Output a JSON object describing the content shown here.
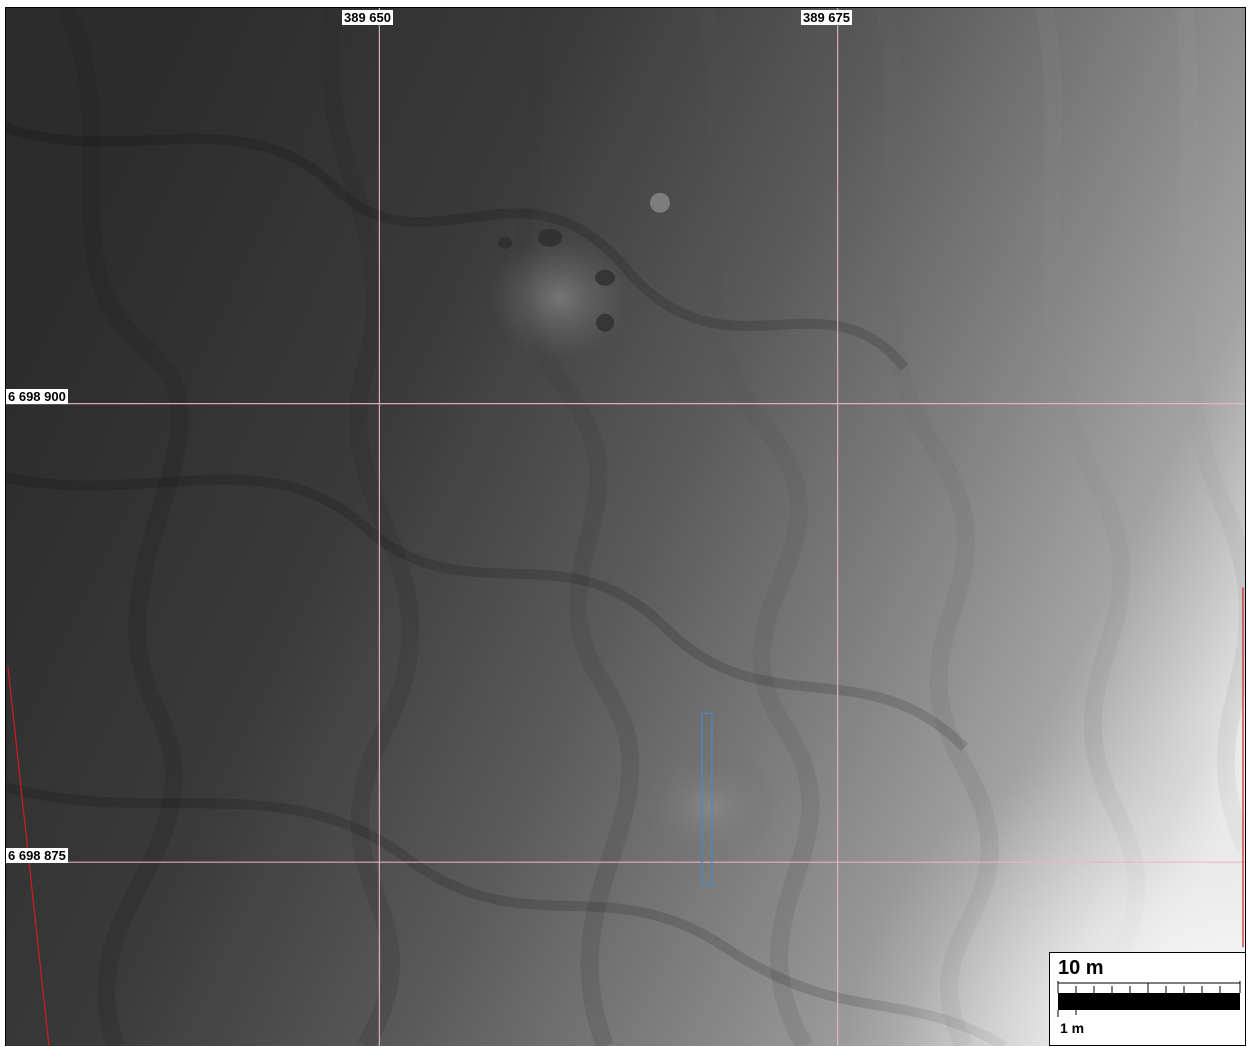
{
  "map": {
    "easting_labels": [
      "389 650",
      "389 675"
    ],
    "northing_labels": [
      "6 698 900",
      "6 698 875"
    ],
    "scalebar": {
      "main_label": "10 m",
      "sub_label": "1 m"
    },
    "colors": {
      "grid_line": "#e9b8c4",
      "boundary_line": "#d01c1c",
      "feature_outline": "#4f86c6",
      "terrain_dark": "#2f2f2f",
      "terrain_light": "#ffffff"
    },
    "feature": "elevation raster with contour-shaded terraces"
  }
}
